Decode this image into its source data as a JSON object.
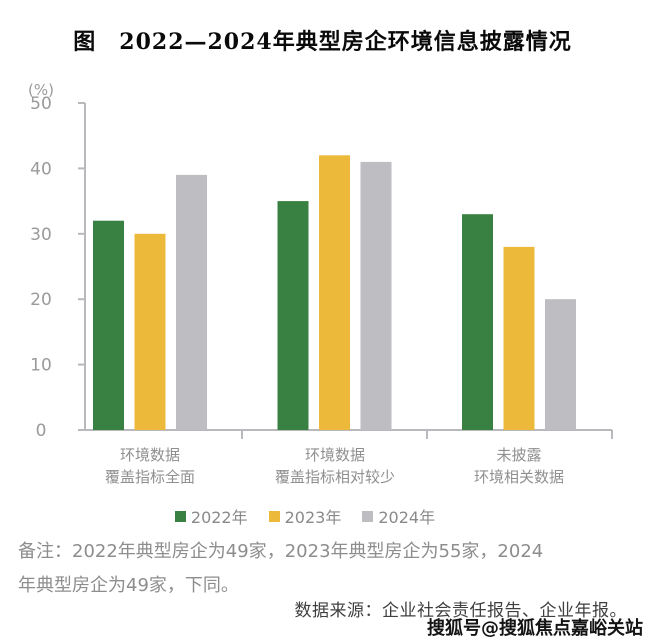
{
  "title": "图　2022—2024年典型房企环境信息披露情况",
  "chart_data": {
    "type": "bar",
    "title": "图　2022—2024年典型房企环境信息披露情况",
    "unit_label": "(%)",
    "categories": [
      {
        "line1": "环境数据",
        "line2": "覆盖指标全面"
      },
      {
        "line1": "环境数据",
        "line2": "覆盖指标相对较少"
      },
      {
        "line1": "未披露",
        "line2": "环境相关数据"
      }
    ],
    "series": [
      {
        "name": "2022年",
        "color": "#388142",
        "values": [
          32,
          35,
          33
        ]
      },
      {
        "name": "2023年",
        "color": "#EDB93B",
        "values": [
          30,
          42,
          28
        ]
      },
      {
        "name": "2024年",
        "color": "#BDBDC2",
        "values": [
          39,
          41,
          20
        ]
      }
    ],
    "ylim": [
      0,
      50
    ],
    "yticks": [
      0,
      10,
      20,
      30,
      40,
      50
    ],
    "grid": false,
    "legend_position": "bottom"
  },
  "note": {
    "line1": "备注：2022年典型房企为49家，2023年典型房企为55家，2024",
    "line2": "年典型房企为49家，下同。"
  },
  "source": "数据来源：企业社会责任报告、企业年报。",
  "watermark": "搜狐号@搜狐焦点嘉峪关站",
  "colors": {
    "axis": "#b9b9bd",
    "tick_label": "#9a9a9a",
    "category_label": "#8f8f8f",
    "legend_label": "#8a8a8a",
    "note": "#8d8d8d",
    "source": "#3f3f3f",
    "title": "#0a0a0a",
    "watermark": "#141414"
  }
}
